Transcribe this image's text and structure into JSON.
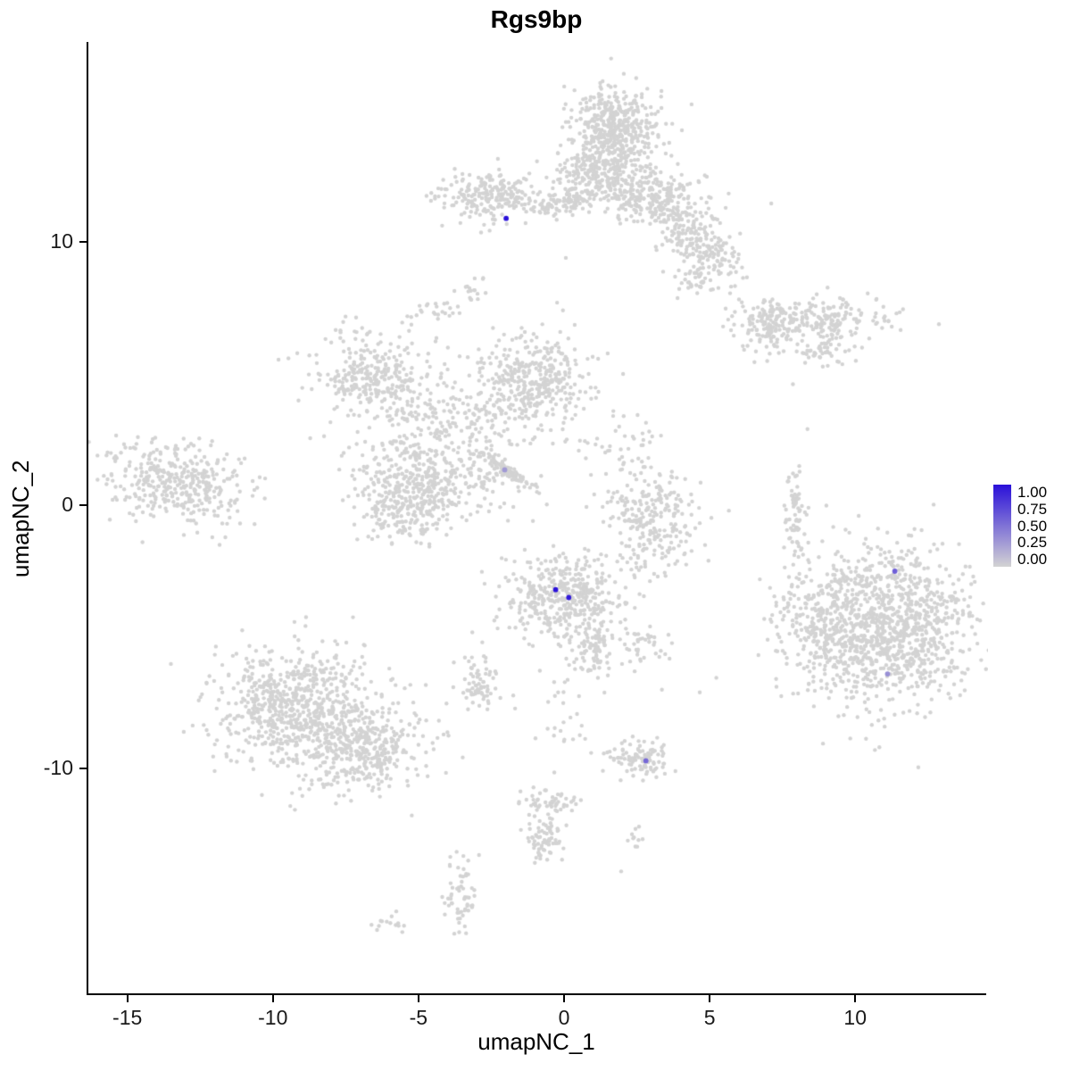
{
  "chart_data": {
    "type": "scatter",
    "title": "Rgs9bp",
    "xlabel": "umapNC_1",
    "ylabel": "umapNC_2",
    "xlim": [
      -16.4,
      14.5
    ],
    "ylim": [
      -18.6,
      17.6
    ],
    "x_ticks": [
      -15,
      -10,
      -5,
      0,
      5,
      10
    ],
    "y_ticks": [
      -10,
      0,
      10
    ],
    "grid": false,
    "legend_position": "right",
    "legend_labels": [
      "1.00",
      "0.75",
      "0.50",
      "0.25",
      "0.00"
    ],
    "low_color": "#d3d3d3",
    "high_color": "#2a10d9",
    "point_color": "#d3d3d3",
    "point_radius": 2.2,
    "highlight_radius": 2.9,
    "cluster_fields": [
      "x",
      "y",
      "sd_x",
      "sd_y",
      "n",
      "rot_rad"
    ],
    "clusters": [
      [
        1.7,
        14.2,
        0.75,
        0.95,
        480
      ],
      [
        1.0,
        12.5,
        0.9,
        0.5,
        200
      ],
      [
        2.9,
        11.7,
        1.1,
        0.5,
        260,
        -0.2
      ],
      [
        4.6,
        10.0,
        0.9,
        0.45,
        200,
        -0.7
      ],
      [
        4.5,
        8.6,
        0.4,
        0.3,
        45
      ],
      [
        -2.7,
        11.7,
        0.85,
        0.45,
        210
      ],
      [
        -0.6,
        11.4,
        0.55,
        0.2,
        70
      ],
      [
        0.4,
        11.6,
        0.3,
        0.2,
        35
      ],
      [
        -3.2,
        8.3,
        0.2,
        0.45,
        18
      ],
      [
        -4.6,
        7.4,
        0.45,
        0.2,
        22
      ],
      [
        8.4,
        7.1,
        1.4,
        0.4,
        230
      ],
      [
        6.9,
        6.7,
        0.5,
        0.5,
        90
      ],
      [
        8.8,
        5.9,
        0.5,
        0.3,
        50
      ],
      [
        -6.7,
        4.9,
        1.0,
        0.85,
        300
      ],
      [
        -1.1,
        4.7,
        1.0,
        0.9,
        380
      ],
      [
        -3.9,
        3.4,
        1.3,
        0.7,
        150
      ],
      [
        -4.7,
        1.1,
        1.3,
        0.9,
        420
      ],
      [
        -5.6,
        -0.4,
        0.7,
        0.5,
        150
      ],
      [
        -2.0,
        1.3,
        0.6,
        0.09,
        90,
        -0.66
      ],
      [
        -13.3,
        0.9,
        1.25,
        0.75,
        380,
        -0.15
      ],
      [
        3.0,
        -0.5,
        0.75,
        0.95,
        260
      ],
      [
        7.9,
        -0.5,
        0.18,
        0.85,
        70
      ],
      [
        0.0,
        -3.6,
        1.0,
        0.85,
        430
      ],
      [
        0.9,
        -5.5,
        0.3,
        0.55,
        70
      ],
      [
        10.9,
        -4.6,
        1.5,
        1.45,
        1150
      ],
      [
        8.6,
        -4.2,
        0.7,
        1.1,
        160
      ],
      [
        -9.3,
        -7.5,
        1.35,
        1.05,
        680,
        0.15
      ],
      [
        -6.9,
        -9.3,
        1.1,
        0.8,
        400,
        0.2
      ],
      [
        -2.9,
        -6.8,
        0.4,
        0.5,
        70
      ],
      [
        2.6,
        -9.6,
        0.5,
        0.4,
        95
      ],
      [
        -0.6,
        -11.3,
        0.5,
        0.3,
        50
      ],
      [
        -0.7,
        -12.8,
        0.35,
        0.55,
        75
      ],
      [
        -3.6,
        -14.7,
        0.3,
        0.75,
        60
      ],
      [
        -6.3,
        -15.9,
        0.35,
        0.18,
        14
      ],
      [
        2.4,
        -12.6,
        0.2,
        0.25,
        10
      ],
      [
        1.6,
        2.3,
        0.8,
        0.7,
        45
      ],
      [
        2.7,
        -5.3,
        0.35,
        0.45,
        40
      ],
      [
        0.1,
        -8.2,
        0.5,
        0.9,
        28
      ]
    ],
    "singles": [
      [
        0.0,
        9.4
      ],
      [
        7.8,
        4.6
      ],
      [
        8.3,
        2.9
      ],
      [
        1.9,
        -13.9
      ],
      [
        3.3,
        -7.0
      ],
      [
        4.9,
        -2.1
      ],
      [
        -0.3,
        7.7
      ],
      [
        5.6,
        -0.2
      ],
      [
        4.6,
        -7.1
      ]
    ],
    "expressing_cells": [
      {
        "x": -2.05,
        "y": 10.9,
        "value": 1.0
      },
      {
        "x": -2.1,
        "y": 1.35,
        "value": 0.3
      },
      {
        "x": -0.35,
        "y": -3.2,
        "value": 1.0
      },
      {
        "x": 0.1,
        "y": -3.5,
        "value": 0.95
      },
      {
        "x": 11.3,
        "y": -2.5,
        "value": 0.6
      },
      {
        "x": 11.05,
        "y": -6.4,
        "value": 0.35
      },
      {
        "x": 2.75,
        "y": -9.7,
        "value": 0.55
      }
    ]
  }
}
